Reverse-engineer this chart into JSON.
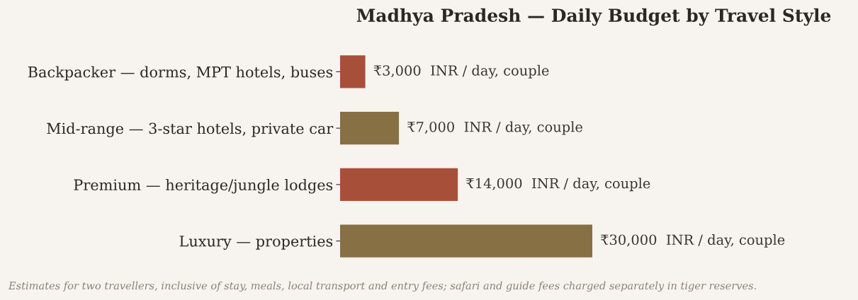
{
  "chart_data": {
    "type": "bar",
    "orientation": "horizontal",
    "title": "Madhya Pradesh — Daily Budget by Travel Style",
    "categories": [
      "Backpacker — dorms, MPT hotels, buses",
      "Mid-range — 3-star hotels, private car",
      "Premium — heritage/jungle lodges",
      "Luxury — properties"
    ],
    "values": [
      3000,
      7000,
      14000,
      30000
    ],
    "colors": [
      "#a84f3a",
      "#877043",
      "#a84f3a",
      "#877043"
    ],
    "value_labels": [
      "₹3,000  INR / day, couple",
      "₹7,000  INR / day, couple",
      "₹14,000  INR / day, couple",
      "₹30,000  INR / day, couple"
    ],
    "grid": false,
    "legend": false,
    "annotations": [
      "Estimates for two travellers, inclusive of stay, meals, local transport and entry fees; safari and guide fees charged separately in tiger reserves."
    ]
  }
}
